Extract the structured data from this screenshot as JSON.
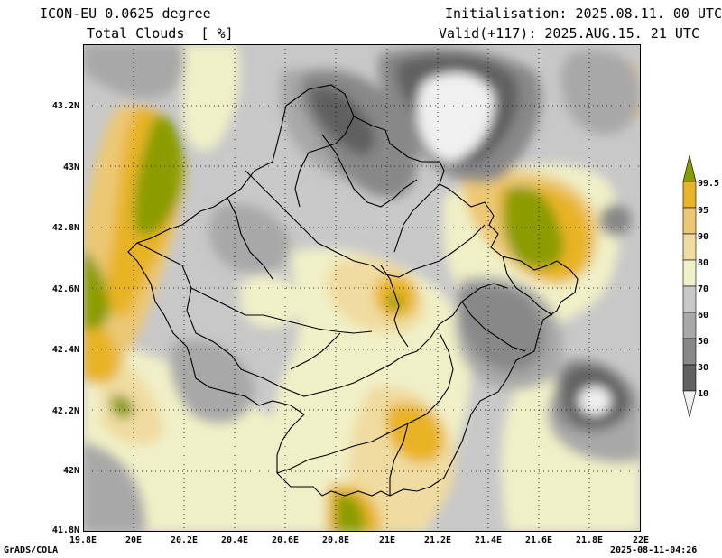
{
  "header": {
    "model": "ICON-EU 0.0625 degree",
    "variable": "Total Clouds  [ %]",
    "init": "Initialisation: 2025.08.11. 00 UTC",
    "valid": "Valid(+117): 2025.AUG.15. 21 UTC"
  },
  "footer": {
    "left": "GrADS/COLA",
    "right": "2025-08-11-04:26"
  },
  "axes": {
    "lat_labels": [
      "43.2N",
      "43N",
      "42.8N",
      "42.6N",
      "42.4N",
      "42.2N",
      "42N",
      "41.8N"
    ],
    "lon_labels": [
      "19.8E",
      "20E",
      "20.2E",
      "20.4E",
      "20.6E",
      "20.8E",
      "21E",
      "21.2E",
      "21.4E",
      "21.6E",
      "21.8E",
      "22E"
    ]
  },
  "colorbar": {
    "labels": [
      "99.5",
      "95",
      "90",
      "80",
      "70",
      "60",
      "50",
      "30",
      "10"
    ],
    "colors": [
      "#8c9c00",
      "#e8b428",
      "#ecc874",
      "#f0dca0",
      "#f0f0c8",
      "#c8c8c8",
      "#a8a8a8",
      "#888888",
      "#606060",
      "#f0f0f0"
    ]
  }
}
